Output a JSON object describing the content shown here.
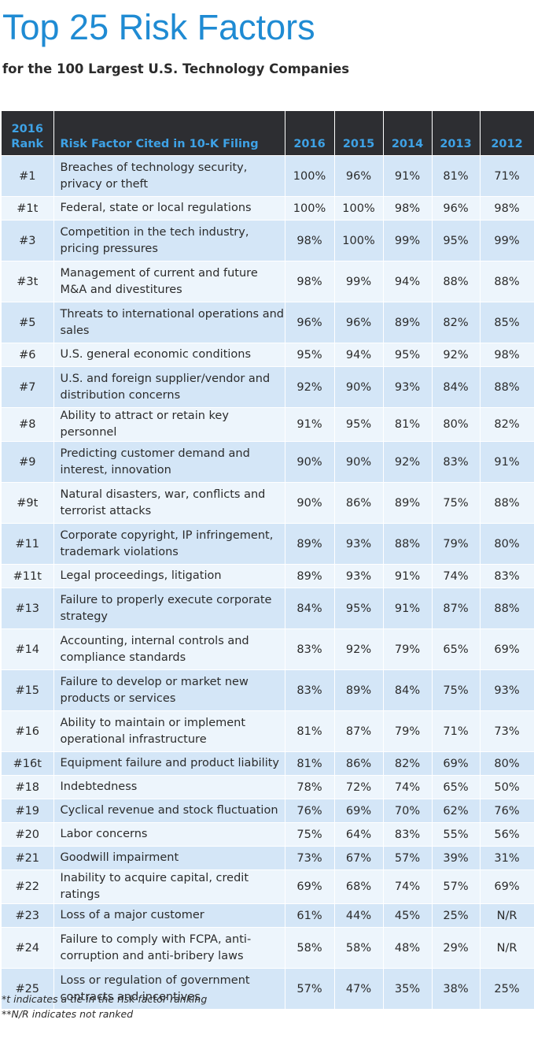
{
  "chart_data": {
    "type": "table",
    "title": "Top 25 Risk Factors",
    "subtitle": "for the 100 Largest U.S. Technology Companies",
    "headers": {
      "rank_line1": "2016",
      "rank_line2": "Rank",
      "factor": "Risk Factor Cited in 10-K Filing",
      "years": [
        "2016",
        "2015",
        "2014",
        "2013",
        "2012"
      ]
    },
    "rows": [
      {
        "rank": "#1",
        "factor": "Breaches of technology security, privacy or theft",
        "values": [
          "100%",
          "96%",
          "91%",
          "81%",
          "71%"
        ]
      },
      {
        "rank": "#1t",
        "factor": "Federal, state or local regulations",
        "values": [
          "100%",
          "100%",
          "98%",
          "96%",
          "98%"
        ]
      },
      {
        "rank": "#3",
        "factor": "Competition in the tech industry, pricing pressures",
        "values": [
          "98%",
          "100%",
          "99%",
          "95%",
          "99%"
        ]
      },
      {
        "rank": "#3t",
        "factor": "Management of current and future M&A and divestitures",
        "values": [
          "98%",
          "99%",
          "94%",
          "88%",
          "88%"
        ]
      },
      {
        "rank": "#5",
        "factor": "Threats to international operations and sales",
        "values": [
          "96%",
          "96%",
          "89%",
          "82%",
          "85%"
        ]
      },
      {
        "rank": "#6",
        "factor": "U.S. general economic conditions",
        "values": [
          "95%",
          "94%",
          "95%",
          "92%",
          "98%"
        ]
      },
      {
        "rank": "#7",
        "factor": "U.S. and foreign supplier/vendor and distribution concerns",
        "values": [
          "92%",
          "90%",
          "93%",
          "84%",
          "88%"
        ]
      },
      {
        "rank": "#8",
        "factor": "Ability to attract or retain key personnel",
        "values": [
          "91%",
          "95%",
          "81%",
          "80%",
          "82%"
        ]
      },
      {
        "rank": "#9",
        "factor": "Predicting customer demand and interest, innovation",
        "values": [
          "90%",
          "90%",
          "92%",
          "83%",
          "91%"
        ]
      },
      {
        "rank": "#9t",
        "factor": "Natural disasters, war, conflicts and terrorist attacks",
        "values": [
          "90%",
          "86%",
          "89%",
          "75%",
          "88%"
        ]
      },
      {
        "rank": "#11",
        "factor": "Corporate copyright, IP infringement, trademark violations",
        "values": [
          "89%",
          "93%",
          "88%",
          "79%",
          "80%"
        ]
      },
      {
        "rank": "#11t",
        "factor": "Legal proceedings, litigation",
        "values": [
          "89%",
          "93%",
          "91%",
          "74%",
          "83%"
        ]
      },
      {
        "rank": "#13",
        "factor": "Failure to properly execute corporate strategy",
        "values": [
          "84%",
          "95%",
          "91%",
          "87%",
          "88%"
        ]
      },
      {
        "rank": "#14",
        "factor": "Accounting, internal controls and compliance standards",
        "values": [
          "83%",
          "92%",
          "79%",
          "65%",
          "69%"
        ]
      },
      {
        "rank": "#15",
        "factor": "Failure to develop or market new products or services",
        "values": [
          "83%",
          "89%",
          "84%",
          "75%",
          "93%"
        ]
      },
      {
        "rank": "#16",
        "factor": "Ability to maintain or implement operational infrastructure",
        "values": [
          "81%",
          "87%",
          "79%",
          "71%",
          "73%"
        ]
      },
      {
        "rank": "#16t",
        "factor": "Equipment failure and product liability",
        "values": [
          "81%",
          "86%",
          "82%",
          "69%",
          "80%"
        ]
      },
      {
        "rank": "#18",
        "factor": "Indebtedness",
        "values": [
          "78%",
          "72%",
          "74%",
          "65%",
          "50%"
        ]
      },
      {
        "rank": "#19",
        "factor": "Cyclical revenue and stock fluctuation",
        "values": [
          "76%",
          "69%",
          "70%",
          "62%",
          "76%"
        ]
      },
      {
        "rank": "#20",
        "factor": "Labor concerns",
        "values": [
          "75%",
          "64%",
          "83%",
          "55%",
          "56%"
        ]
      },
      {
        "rank": "#21",
        "factor": "Goodwill impairment",
        "values": [
          "73%",
          "67%",
          "57%",
          "39%",
          "31%"
        ]
      },
      {
        "rank": "#22",
        "factor": "Inability to acquire capital, credit ratings",
        "values": [
          "69%",
          "68%",
          "74%",
          "57%",
          "69%"
        ]
      },
      {
        "rank": "#23",
        "factor": "Loss of a major customer",
        "values": [
          "61%",
          "44%",
          "45%",
          "25%",
          "N/R"
        ]
      },
      {
        "rank": "#24",
        "factor": "Failure to comply with FCPA, anti-corruption and anti-bribery laws",
        "values": [
          "58%",
          "58%",
          "48%",
          "29%",
          "N/R"
        ]
      },
      {
        "rank": "#25",
        "factor": "Loss or regulation of government contracts and incentives",
        "values": [
          "57%",
          "47%",
          "35%",
          "38%",
          "25%"
        ]
      }
    ],
    "footnotes": [
      "*t indicates a tie in the risk factor ranking",
      "**N/R indicates not ranked"
    ]
  },
  "colors": {
    "title": "#1f8bd3",
    "header_bg": "#2d2e32",
    "header_text": "#3ea2e6",
    "row_dark": "#d4e6f7",
    "row_light": "#edf5fc"
  }
}
